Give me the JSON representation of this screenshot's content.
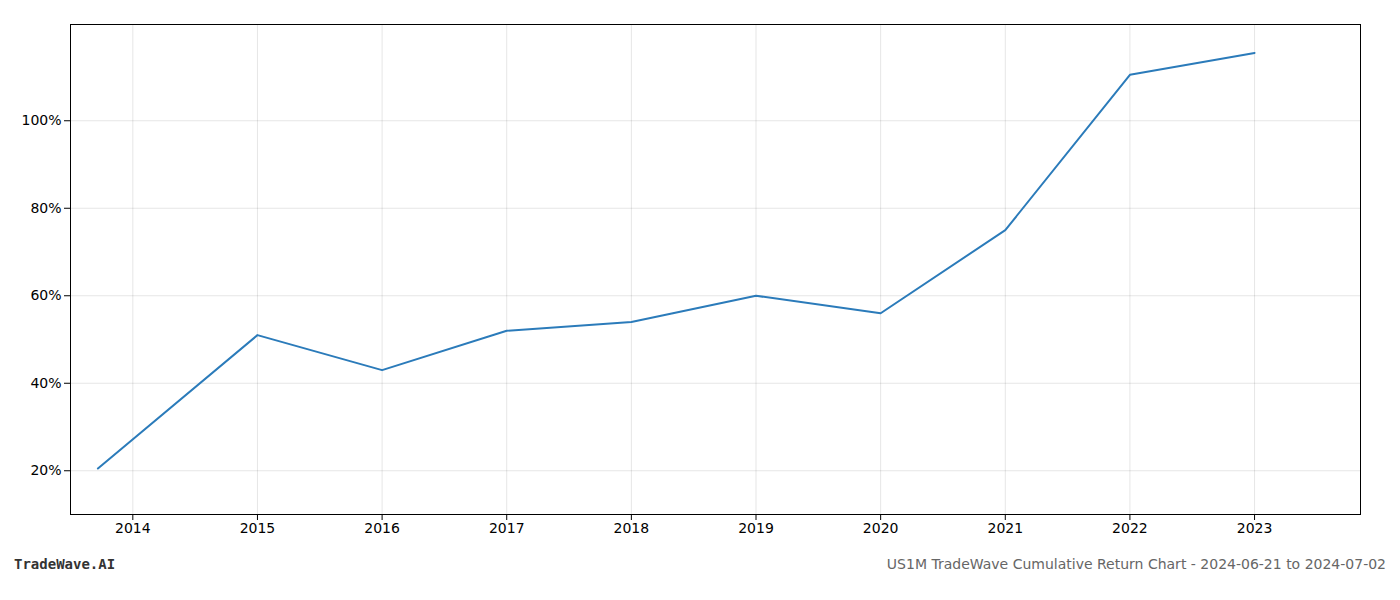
{
  "chart_data": {
    "type": "line",
    "x": [
      2013.72,
      2015.0,
      2016.0,
      2017.0,
      2018.0,
      2019.0,
      2020.0,
      2021.0,
      2022.0,
      2023.0
    ],
    "values": [
      20.5,
      51.0,
      43.0,
      52.0,
      54.0,
      60.0,
      56.0,
      75.0,
      110.5,
      115.5
    ],
    "color": "#2b7bba",
    "xlim": [
      2013.5,
      2023.85
    ],
    "xticks": [
      2014,
      2015,
      2016,
      2017,
      2018,
      2019,
      2020,
      2021,
      2022,
      2023
    ],
    "ylim": [
      10,
      122
    ],
    "yticks": [
      {
        "value": 20,
        "label": "20%"
      },
      {
        "value": 40,
        "label": "40%"
      },
      {
        "value": 60,
        "label": "60%"
      },
      {
        "value": 80,
        "label": "80%"
      },
      {
        "value": 100,
        "label": "100%"
      }
    ],
    "grid": true,
    "annotations": [
      "TradeWave.AI",
      "US1M TradeWave Cumulative Return Chart - 2024-06-21 to 2024-07-02"
    ]
  }
}
